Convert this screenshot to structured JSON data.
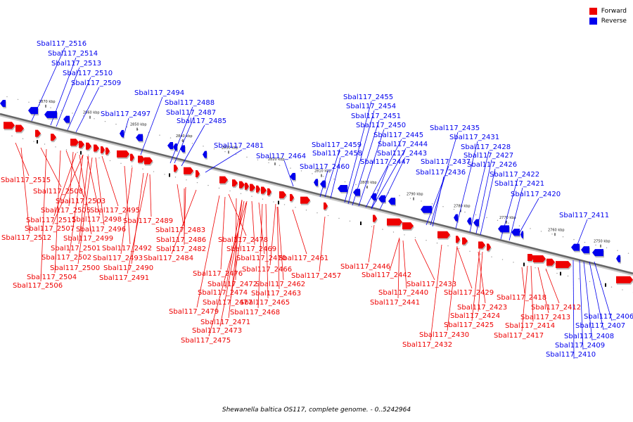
{
  "caption": "Shewanella baltica OS117, complete genome. - 0..5242964",
  "legend": [
    {
      "label": "Forward",
      "color": "#ee0000"
    },
    {
      "label": "Reverse",
      "color": "#0000ee"
    }
  ],
  "ticks": [
    "2870 kbp",
    "2860 kbp",
    "2850 kbp",
    "2840 kbp",
    "2830 kbp",
    "2820 kbp",
    "2810 kbp",
    "2800 kbp",
    "2790 kbp",
    "2780 kbp",
    "2770 kbp",
    "2760 kbp",
    "2750 kbp"
  ],
  "reverse_genes": [
    "Sbal117_2516",
    "Sbal117_2514",
    "Sbal117_2513",
    "Sbal117_2510",
    "Sbal117_2509",
    "Sbal117_2497",
    "Sbal117_2494",
    "Sbal117_2488",
    "Sbal117_2487",
    "Sbal117_2485",
    "Sbal117_2481",
    "Sbal117_2464",
    "Sbal117_2460",
    "Sbal117_2459",
    "Sbal117_2458",
    "Sbal117_2455",
    "Sbal117_2454",
    "Sbal117_2451",
    "Sbal117_2450",
    "Sbal117_2445",
    "Sbal117_2444",
    "Sbal117_2443",
    "Sbal117_2447",
    "Sbal117_2437",
    "Sbal117_2436",
    "Sbal117_2435",
    "Sbal117_2431",
    "Sbal117_2428",
    "Sbal117_2427",
    "Sbal117_2426",
    "Sbal117_2422",
    "Sbal117_2421",
    "Sbal117_2420",
    "Sbal117_2411",
    "Sbal117_2406",
    "Sbal117_2407",
    "Sbal117_2408",
    "Sbal117_2409",
    "Sbal117_2410"
  ],
  "forward_genes": [
    "Sbal117_2515",
    "Sbal117_2508",
    "Sbal117_2503",
    "Sbal117_2505",
    "Sbal117_2495",
    "Sbal117_2511",
    "Sbal117_2498",
    "Sbal117_2507",
    "Sbal117_2496",
    "Sbal117_2512",
    "Sbal117_2499",
    "Sbal117_2501",
    "Sbal117_2492",
    "Sbal117_2502",
    "Sbal117_2493",
    "Sbal117_2500",
    "Sbal117_2490",
    "Sbal117_2504",
    "Sbal117_2491",
    "Sbal117_2506",
    "Sbal117_2489",
    "Sbal117_2483",
    "Sbal117_2486",
    "Sbal117_2482",
    "Sbal117_2484",
    "Sbal117_2478",
    "Sbal117_2469",
    "Sbal117_2470",
    "Sbal117_2476",
    "Sbal117_2472",
    "Sbal117_2474",
    "Sbal117_2477",
    "Sbal117_2479",
    "Sbal117_2471",
    "Sbal117_2473",
    "Sbal117_2475",
    "Sbal117_2466",
    "Sbal117_2462",
    "Sbal117_2463",
    "Sbal117_2465",
    "Sbal117_2468",
    "Sbal117_2461",
    "Sbal117_2457",
    "Sbal117_2446",
    "Sbal117_2442",
    "Sbal117_2433",
    "Sbal117_2440",
    "Sbal117_2441",
    "Sbal117_2429",
    "Sbal117_2423",
    "Sbal117_2424",
    "Sbal117_2425",
    "Sbal117_2430",
    "Sbal117_2432",
    "Sbal117_2418",
    "Sbal117_2412",
    "Sbal117_2413",
    "Sbal117_2414",
    "Sbal117_2417"
  ]
}
